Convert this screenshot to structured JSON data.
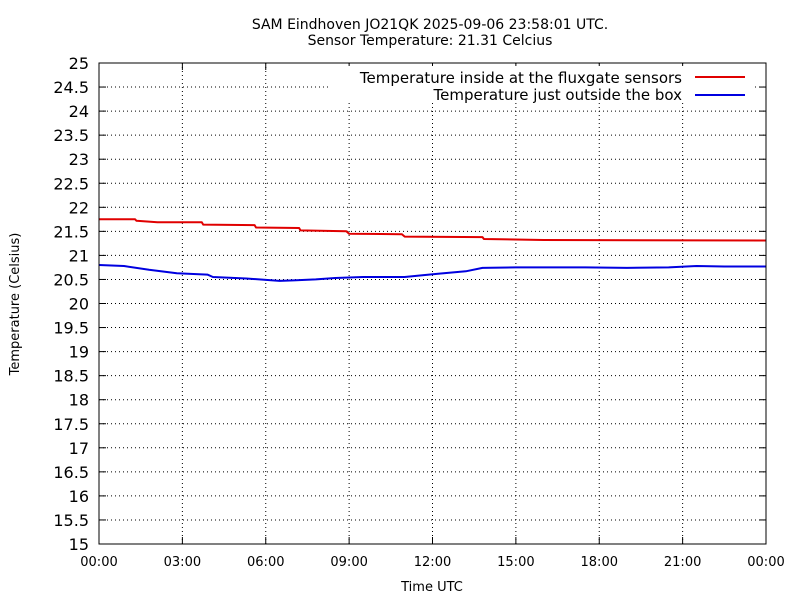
{
  "chart_data": {
    "type": "line",
    "title": "SAM Eindhoven JO21QK 2025-09-06 23:58:01 UTC.",
    "subtitle": "Sensor Temperature: 21.31 Celcius",
    "xlabel": "Time UTC",
    "ylabel": "Temperature (Celsius)",
    "xlim": [
      0,
      24
    ],
    "ylim": [
      15,
      25
    ],
    "grid": true,
    "legend_position": "top-right",
    "x_ticks": [
      {
        "value": 0,
        "label": "00:00"
      },
      {
        "value": 3,
        "label": "03:00"
      },
      {
        "value": 6,
        "label": "06:00"
      },
      {
        "value": 9,
        "label": "09:00"
      },
      {
        "value": 12,
        "label": "12:00"
      },
      {
        "value": 15,
        "label": "15:00"
      },
      {
        "value": 18,
        "label": "18:00"
      },
      {
        "value": 21,
        "label": "21:00"
      },
      {
        "value": 24,
        "label": "00:00"
      }
    ],
    "y_ticks": [
      {
        "value": 15,
        "label": "15"
      },
      {
        "value": 15.5,
        "label": "15.5"
      },
      {
        "value": 16,
        "label": "16"
      },
      {
        "value": 16.5,
        "label": "16.5"
      },
      {
        "value": 17,
        "label": "17"
      },
      {
        "value": 17.5,
        "label": "17.5"
      },
      {
        "value": 18,
        "label": "18"
      },
      {
        "value": 18.5,
        "label": "18.5"
      },
      {
        "value": 19,
        "label": "19"
      },
      {
        "value": 19.5,
        "label": "19.5"
      },
      {
        "value": 20,
        "label": "20"
      },
      {
        "value": 20.5,
        "label": "20.5"
      },
      {
        "value": 21,
        "label": "21"
      },
      {
        "value": 21.5,
        "label": "21.5"
      },
      {
        "value": 22,
        "label": "22"
      },
      {
        "value": 22.5,
        "label": "22.5"
      },
      {
        "value": 23,
        "label": "23"
      },
      {
        "value": 23.5,
        "label": "23.5"
      },
      {
        "value": 24,
        "label": "24"
      },
      {
        "value": 24.5,
        "label": "24.5"
      },
      {
        "value": 25,
        "label": "25"
      }
    ],
    "series": [
      {
        "name": "Temperature inside at the fluxgate sensors",
        "color": "#e00000",
        "x": [
          0,
          1.3,
          1.35,
          2.1,
          3.7,
          3.75,
          5.6,
          5.65,
          7.2,
          7.25,
          8.9,
          9.0,
          10.9,
          11.0,
          13.8,
          13.85,
          16.0,
          24
        ],
        "y": [
          21.75,
          21.75,
          21.72,
          21.69,
          21.69,
          21.64,
          21.63,
          21.58,
          21.57,
          21.52,
          21.5,
          21.45,
          21.44,
          21.39,
          21.38,
          21.34,
          21.32,
          21.31
        ]
      },
      {
        "name": "Temperature just outside the box",
        "color": "#0000e0",
        "x": [
          0,
          0.9,
          1.8,
          2.8,
          3.9,
          4.1,
          5.3,
          6.5,
          7.0,
          7.8,
          8.5,
          9.5,
          11.0,
          11.5,
          12.2,
          13.2,
          13.8,
          15.0,
          17.5,
          19.0,
          20.5,
          21.5,
          22.5,
          24
        ],
        "y": [
          20.8,
          20.78,
          20.7,
          20.63,
          20.6,
          20.55,
          20.52,
          20.47,
          20.48,
          20.5,
          20.53,
          20.55,
          20.55,
          20.58,
          20.62,
          20.67,
          20.74,
          20.75,
          20.75,
          20.74,
          20.75,
          20.78,
          20.77,
          20.77
        ]
      }
    ]
  }
}
